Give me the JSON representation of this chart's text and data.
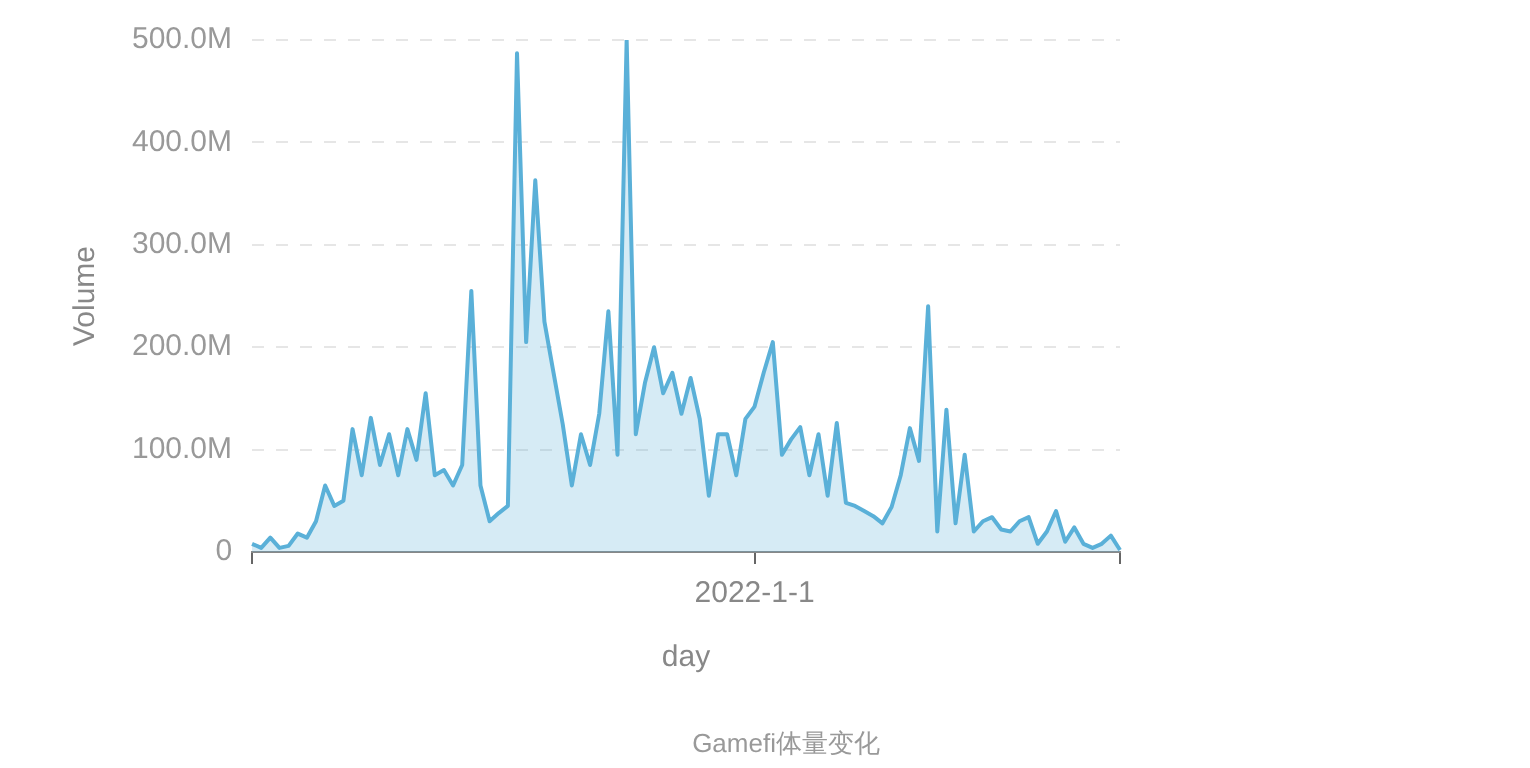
{
  "chart_data": {
    "type": "area",
    "xlabel": "day",
    "ylabel": "Volume",
    "annotations": [
      "Gamefi体量变化"
    ],
    "grid": "y",
    "legend": false,
    "marker": "none",
    "categories": [
      null,
      null,
      null,
      null,
      null,
      null,
      null,
      null,
      null,
      null,
      null,
      null,
      null,
      null,
      null,
      null,
      null,
      null,
      null,
      null,
      null,
      null,
      null,
      null,
      null,
      null,
      null,
      null,
      null,
      null,
      null,
      null,
      null,
      null,
      null,
      null,
      null,
      null,
      null,
      null,
      null,
      null,
      null,
      null,
      null,
      null,
      null,
      null,
      null,
      null,
      null,
      null,
      null,
      null,
      null,
      "2022-1-1",
      null,
      null,
      null,
      null,
      null,
      null,
      null,
      null,
      null,
      null,
      null,
      null,
      null,
      null,
      null,
      null,
      null,
      null,
      null,
      null,
      null,
      null,
      null,
      null,
      null,
      null,
      null,
      null,
      null,
      null,
      null,
      null,
      null,
      null,
      null,
      null,
      null,
      null,
      null,
      null
    ],
    "ylim": [
      0,
      500000000
    ],
    "yticks": [
      {
        "value": 0,
        "label": "0"
      },
      {
        "value": 100000000,
        "label": "100.0M"
      },
      {
        "value": 200000000,
        "label": "200.0M"
      },
      {
        "value": 300000000,
        "label": "300.0M"
      },
      {
        "value": 400000000,
        "label": "400.0M"
      },
      {
        "value": 500000000,
        "label": "500.0M"
      }
    ],
    "series": [
      {
        "color": "#5ab0d8",
        "values": [
          8000000,
          4000000,
          14000000,
          4000000,
          6000000,
          18000000,
          14000000,
          30000000,
          65000000,
          45000000,
          50000000,
          120000000,
          75000000,
          131000000,
          85000000,
          115000000,
          75000000,
          120000000,
          90000000,
          155000000,
          75000000,
          80000000,
          65000000,
          85000000,
          255000000,
          65000000,
          30000000,
          38000000,
          45000000,
          487000000,
          205000000,
          363000000,
          225000000,
          175000000,
          125000000,
          65000000,
          115000000,
          85000000,
          135000000,
          235000000,
          95000000,
          500000000,
          115000000,
          165000000,
          200000000,
          155000000,
          175000000,
          135000000,
          170000000,
          130000000,
          55000000,
          115000000,
          115000000,
          75000000,
          130000000,
          142000000,
          175000000,
          205000000,
          95000000,
          110000000,
          122000000,
          75000000,
          115000000,
          55000000,
          126000000,
          48000000,
          45000000,
          40000000,
          35000000,
          28000000,
          44000000,
          75000000,
          121000000,
          89000000,
          240000000,
          20000000,
          139000000,
          28000000,
          95000000,
          20000000,
          30000000,
          34000000,
          22000000,
          20000000,
          30000000,
          34000000,
          8000000,
          20000000,
          40000000,
          10000000,
          24000000,
          8000000,
          4000000,
          8000000,
          16000000,
          2000000
        ]
      }
    ]
  }
}
